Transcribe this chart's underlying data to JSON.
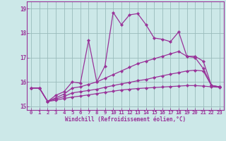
{
  "xlabel": "Windchill (Refroidissement éolien,°C)",
  "x": [
    0,
    1,
    2,
    3,
    4,
    5,
    6,
    7,
    8,
    9,
    10,
    11,
    12,
    13,
    14,
    15,
    16,
    17,
    18,
    19,
    20,
    21,
    22,
    23
  ],
  "line1": [
    15.75,
    15.75,
    15.2,
    15.45,
    15.6,
    16.0,
    15.95,
    17.7,
    16.0,
    16.65,
    18.85,
    18.35,
    18.75,
    18.8,
    18.35,
    17.8,
    17.75,
    17.65,
    18.05,
    17.05,
    17.05,
    16.85,
    15.85,
    15.8
  ],
  "line2": [
    15.75,
    15.75,
    15.2,
    15.35,
    15.5,
    15.75,
    15.8,
    15.9,
    16.0,
    16.15,
    16.3,
    16.45,
    16.6,
    16.75,
    16.85,
    16.95,
    17.05,
    17.15,
    17.25,
    17.05,
    17.0,
    16.55,
    15.85,
    15.8
  ],
  "line3": [
    15.75,
    15.75,
    15.2,
    15.3,
    15.4,
    15.55,
    15.6,
    15.65,
    15.7,
    15.78,
    15.85,
    15.92,
    15.98,
    16.05,
    16.1,
    16.18,
    16.25,
    16.32,
    16.38,
    16.45,
    16.48,
    16.45,
    15.85,
    15.8
  ],
  "line4": [
    15.75,
    15.75,
    15.2,
    15.25,
    15.32,
    15.38,
    15.42,
    15.47,
    15.52,
    15.57,
    15.62,
    15.67,
    15.7,
    15.73,
    15.75,
    15.77,
    15.79,
    15.81,
    15.83,
    15.85,
    15.85,
    15.83,
    15.8,
    15.78
  ],
  "color": "#993399",
  "bg_color": "#cce8e8",
  "grid_color": "#99bbbb",
  "ylim": [
    14.85,
    19.3
  ],
  "yticks": [
    15,
    16,
    17,
    18,
    19
  ],
  "xticks": [
    0,
    1,
    2,
    3,
    4,
    5,
    6,
    7,
    8,
    9,
    10,
    11,
    12,
    13,
    14,
    15,
    16,
    17,
    18,
    19,
    20,
    21,
    22,
    23
  ]
}
